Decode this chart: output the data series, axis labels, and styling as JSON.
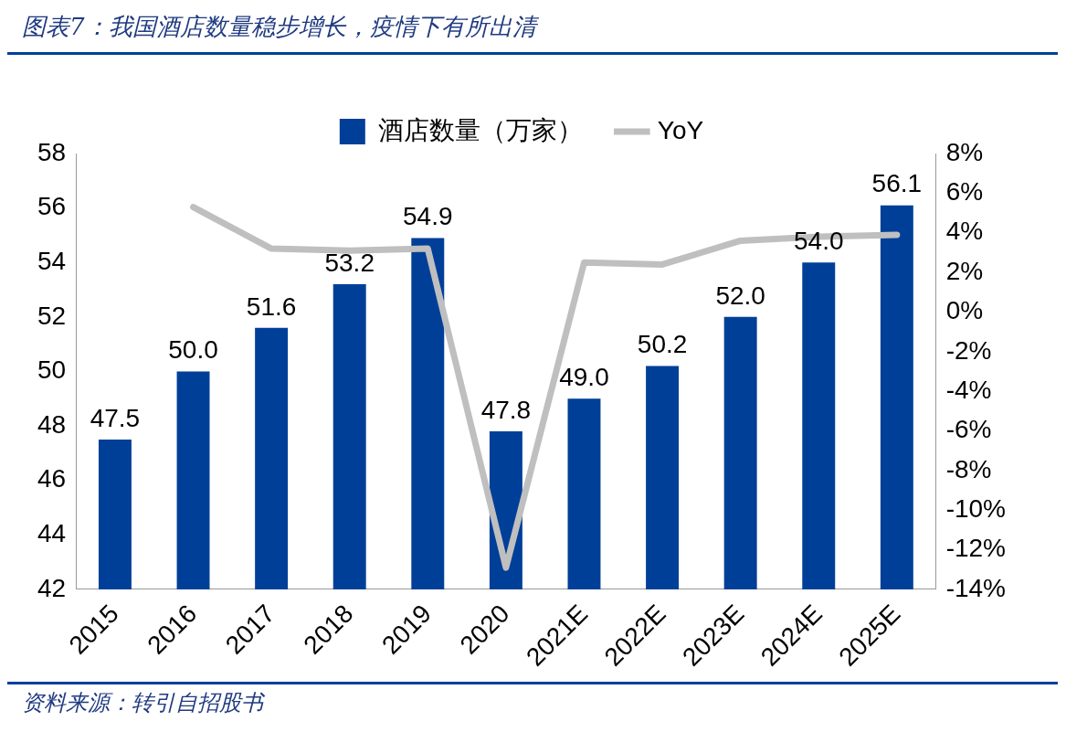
{
  "chart_data": {
    "type": "bar",
    "title": "图表7：我国酒店数量稳步增长，疫情下有所出清",
    "categories": [
      "2015",
      "2016",
      "2017",
      "2018",
      "2019",
      "2020",
      "2021E",
      "2022E",
      "2023E",
      "2024E",
      "2025E"
    ],
    "series": [
      {
        "name": "酒店数量（万家）",
        "color": "#003f98",
        "values": [
          47.5,
          50.0,
          51.6,
          53.2,
          54.9,
          47.8,
          49.0,
          50.2,
          52.0,
          54.0,
          56.1
        ],
        "value_labels": [
          "47.5",
          "50.0",
          "51.6",
          "53.2",
          "54.9",
          "47.8",
          "49.0",
          "50.2",
          "52.0",
          "54.0",
          "56.1"
        ]
      },
      {
        "name": "YoY",
        "type": "line",
        "axis": "y2",
        "color": "#bfbfbf",
        "values": [
          null,
          5.3,
          3.2,
          3.1,
          3.2,
          -12.9,
          2.5,
          2.4,
          3.6,
          3.8,
          3.9
        ]
      }
    ],
    "ylim": [
      42,
      58
    ],
    "yticks": [
      42,
      44,
      46,
      48,
      50,
      52,
      54,
      56,
      58
    ],
    "y2lim": [
      -14,
      8
    ],
    "y2ticks": [
      {
        "value": -14,
        "label": "-14%"
      },
      {
        "value": -12,
        "label": "-12%"
      },
      {
        "value": -10,
        "label": "-10%"
      },
      {
        "value": -8,
        "label": "-8%"
      },
      {
        "value": -6,
        "label": "-6%"
      },
      {
        "value": -4,
        "label": "-4%"
      },
      {
        "value": -2,
        "label": "-2%"
      },
      {
        "value": 0,
        "label": "0%"
      },
      {
        "value": 2,
        "label": "2%"
      },
      {
        "value": 4,
        "label": "4%"
      },
      {
        "value": 6,
        "label": "6%"
      },
      {
        "value": 8,
        "label": "8%"
      }
    ],
    "grid": false,
    "legend": "top",
    "marker": "none",
    "line_style": "solid",
    "annotations": [
      "资料来源：转引自招股书"
    ]
  }
}
